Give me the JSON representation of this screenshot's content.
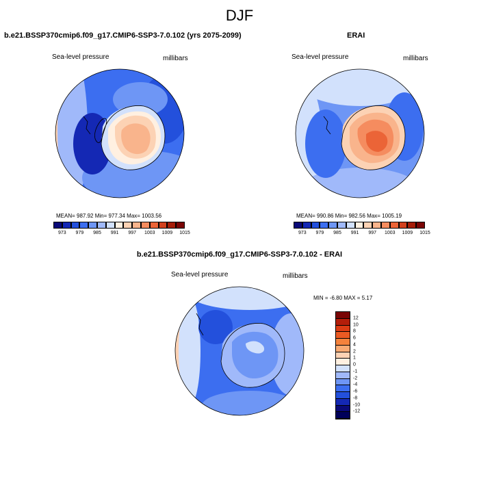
{
  "title": "DJF",
  "panel1": {
    "title": "b.e21.BSSP370cmip6.f09_g17.CMIP6-SSP3-7.0.102 (yrs 2075-2099)",
    "left_label": "Sea-level pressure",
    "right_label": "millibars",
    "stats": "MEAN= 987.92   Min= 977.34   Max= 1003.56"
  },
  "panel2": {
    "title": "ERAI",
    "left_label": "Sea-level pressure",
    "right_label": "millibars",
    "stats": "MEAN= 990.86   Min= 982.56   Max= 1005.19"
  },
  "colorbar_top": {
    "colors": [
      "#0a0a78",
      "#1428b4",
      "#2350dc",
      "#3c6ef0",
      "#6e96f5",
      "#a0b9fa",
      "#d2e1fc",
      "#fff0e1",
      "#fcd2b4",
      "#f9b48c",
      "#f58c5f",
      "#eb6437",
      "#d2411e",
      "#a51e0a",
      "#7a0505"
    ],
    "tick_labels": [
      "973",
      "979",
      "985",
      "991",
      "997",
      "1003",
      "1009",
      "1015"
    ]
  },
  "panel3": {
    "title": "b.e21.BSSP370cmip6.f09_g17.CMIP6-SSP3-7.0.102 - ERAI",
    "left_label": "Sea-level pressure",
    "right_label": "millibars",
    "stats": "MIN =  -6.80 MAX =   5.17"
  },
  "colorbar_diff": {
    "colors": [
      "#7a0505",
      "#b41e0a",
      "#dc3c14",
      "#eb5a23",
      "#f5823c",
      "#f9aa73",
      "#fcd2b4",
      "#fff0e1",
      "#d2e1fc",
      "#a0b9fa",
      "#6e96f5",
      "#3c6ef0",
      "#2350dc",
      "#1428b4",
      "#0a0a78",
      "#00005a"
    ],
    "tick_labels": [
      "12",
      "10",
      "8",
      "6",
      "4",
      "2",
      "1",
      "0",
      "-1",
      "-2",
      "-4",
      "-6",
      "-8",
      "-10",
      "-12"
    ]
  }
}
